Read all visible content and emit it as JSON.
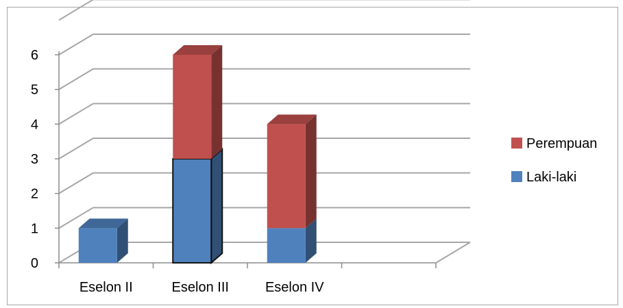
{
  "chart_data": {
    "type": "bar",
    "stacked": true,
    "three_d": true,
    "categories": [
      "Eselon II",
      "Eselon III",
      "Eselon IV"
    ],
    "series": [
      {
        "name": "Laki-laki",
        "values": [
          1,
          3,
          1
        ],
        "color": "#4f81bd"
      },
      {
        "name": "Perempuan",
        "values": [
          0,
          3,
          3
        ],
        "color": "#c0504d"
      }
    ],
    "title": "",
    "xlabel": "",
    "ylabel": "",
    "ylim": [
      0,
      6
    ],
    "yticks": [
      "0",
      "1",
      "2",
      "3",
      "4",
      "5",
      "6"
    ],
    "grid": true,
    "legend_position": "right",
    "legend_order": [
      "Perempuan",
      "Laki-laki"
    ],
    "empty_slots": 1
  }
}
